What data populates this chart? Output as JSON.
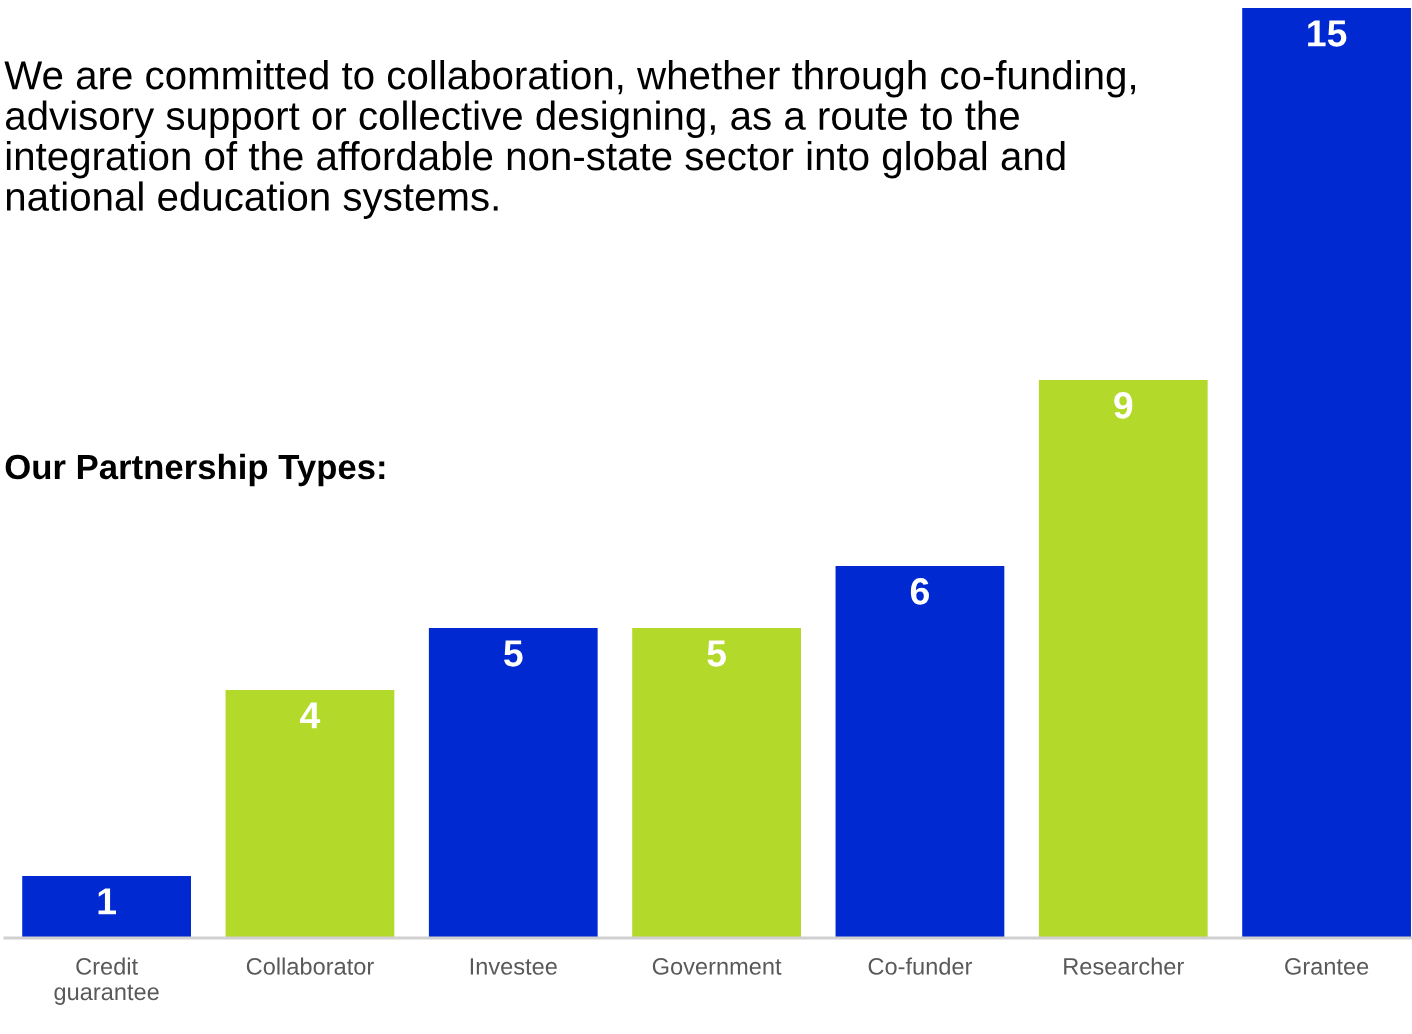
{
  "chart_data": {
    "type": "bar",
    "title": "Our Partnership Types:",
    "annotations": [
      "We are committed to collaboration, whether through co-funding, advisory support or collective designing, as a route to the integration of the affordable non-state sector into global and national education systems."
    ],
    "categories": [
      "Credit\nguarantee",
      "Collaborator",
      "Investee",
      "Government",
      "Co-funder",
      "Researcher",
      "Grantee"
    ],
    "values": [
      1,
      4,
      5,
      5,
      6,
      9,
      15
    ],
    "colors": [
      "#0029d1",
      "#b3d92a",
      "#0029d1",
      "#b3d92a",
      "#0029d1",
      "#b3d92a",
      "#0029d1"
    ],
    "data_labels": true,
    "grid": false,
    "legend": false
  }
}
